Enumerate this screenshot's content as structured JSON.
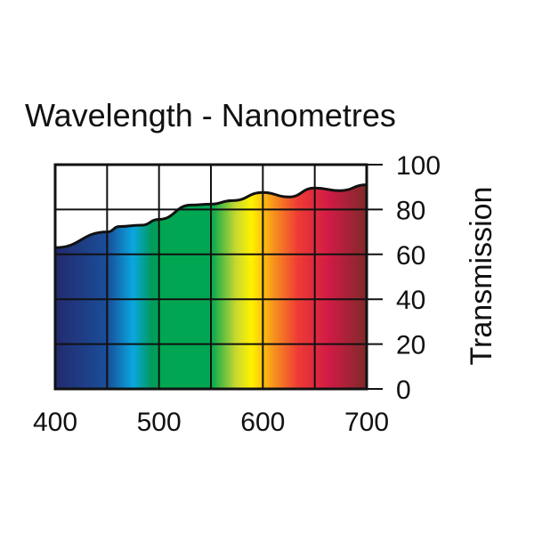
{
  "chart_data": {
    "type": "area",
    "title": "Wavelength - Nanometres",
    "xlabel": "",
    "ylabel": "Transmission",
    "xlim": [
      400,
      700
    ],
    "ylim": [
      0,
      100
    ],
    "x_ticks": [
      400,
      500,
      600,
      700
    ],
    "y_ticks": [
      0,
      20,
      40,
      60,
      80,
      100
    ],
    "grid": true,
    "x": [
      400,
      450,
      462,
      483,
      500,
      531,
      550,
      571,
      600,
      625,
      650,
      674,
      700
    ],
    "values": [
      63,
      70,
      72.4,
      73,
      75.6,
      82,
      82.4,
      84,
      87.6,
      85.6,
      89.6,
      88.4,
      91
    ],
    "fill": "visible spectrum gradient",
    "spectrum_colors": [
      "#232a6e",
      "#1a4f9a",
      "#0aa7e0",
      "#009a5a",
      "#00a651",
      "#c8d830",
      "#fff200",
      "#f7941d",
      "#ee3a35",
      "#d01b45",
      "#b22a3e",
      "#7e2a2a"
    ]
  }
}
